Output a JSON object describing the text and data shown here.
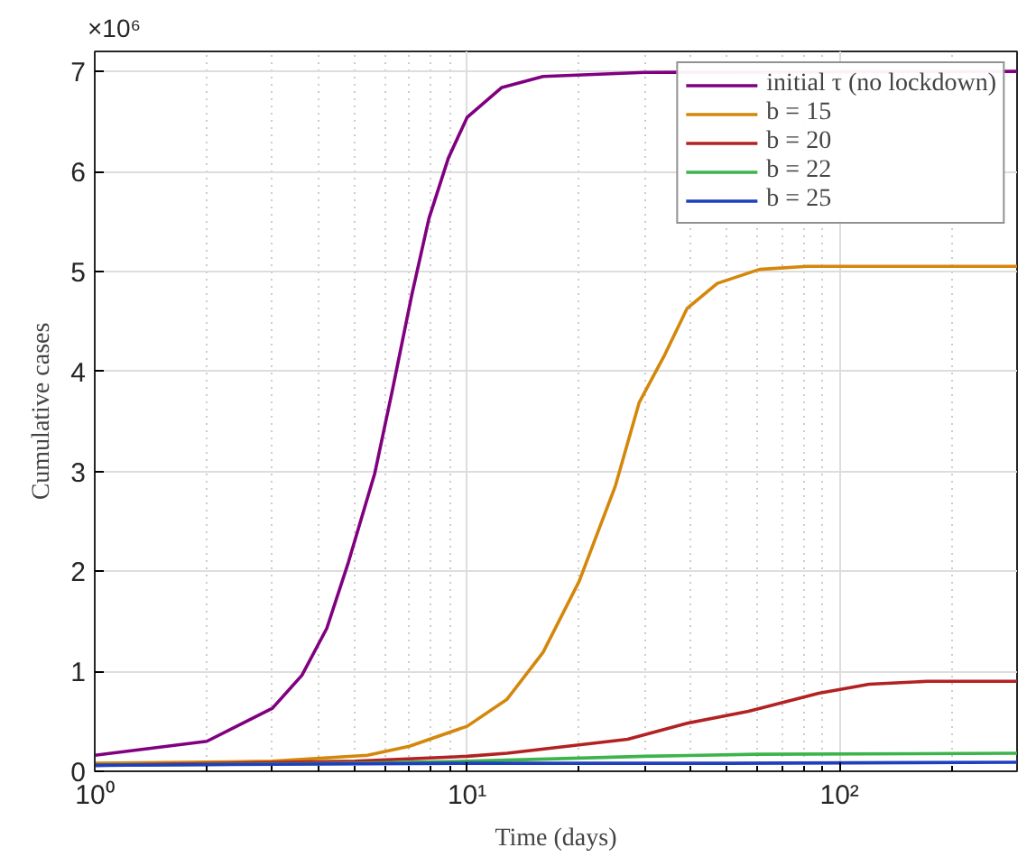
{
  "chart_data": {
    "type": "line",
    "xlabel": "Time (days)",
    "ylabel": "Cumulative cases",
    "log": "x",
    "grid": true,
    "legend": "top right",
    "line_style": "solid",
    "marker": "none",
    "annotations": [
      "×10⁶"
    ],
    "xlim": [
      1,
      300
    ],
    "ylim": [
      0,
      7.2
    ],
    "xticks": [
      {
        "value": 1,
        "label": "10⁰"
      },
      {
        "value": 10,
        "label": "10¹"
      },
      {
        "value": 100,
        "label": "10²"
      }
    ],
    "yticks": [
      0,
      1,
      2,
      3,
      4,
      5,
      6,
      7
    ],
    "series": [
      {
        "name": "initial τ (no lockdown)",
        "color": "#800080",
        "x": [
          1,
          2,
          3,
          3.6,
          4.2,
          4.8,
          5.65,
          6.3,
          7.1,
          7.9,
          8.9,
          10,
          12.4,
          16,
          30,
          300
        ],
        "values": [
          0.16,
          0.3,
          0.63,
          0.96,
          1.43,
          2.09,
          2.98,
          3.81,
          4.76,
          5.53,
          6.13,
          6.54,
          6.84,
          6.95,
          6.99,
          7.0
        ]
      },
      {
        "name": "b = 15",
        "color": "#d4870b",
        "x": [
          1,
          3,
          5.4,
          7,
          10,
          12.8,
          16,
          20,
          25,
          29,
          34,
          39,
          47,
          61,
          82,
          300
        ],
        "values": [
          0.08,
          0.1,
          0.16,
          0.25,
          0.45,
          0.72,
          1.19,
          1.9,
          2.85,
          3.69,
          4.17,
          4.63,
          4.88,
          5.02,
          5.05,
          5.05
        ]
      },
      {
        "name": "b = 20",
        "color": "#b22222",
        "x": [
          1,
          5,
          10,
          12.8,
          27,
          39,
          57,
          88,
          120,
          172,
          300
        ],
        "values": [
          0.06,
          0.1,
          0.15,
          0.18,
          0.32,
          0.48,
          0.6,
          0.78,
          0.87,
          0.9,
          0.9
        ]
      },
      {
        "name": "b = 22",
        "color": "#3cb44b",
        "x": [
          1,
          5,
          10,
          30,
          60,
          300
        ],
        "values": [
          0.06,
          0.08,
          0.1,
          0.15,
          0.17,
          0.18
        ]
      },
      {
        "name": "b = 25",
        "color": "#1f3fbf",
        "x": [
          1,
          10,
          50,
          300
        ],
        "values": [
          0.06,
          0.08,
          0.08,
          0.09
        ]
      }
    ]
  }
}
